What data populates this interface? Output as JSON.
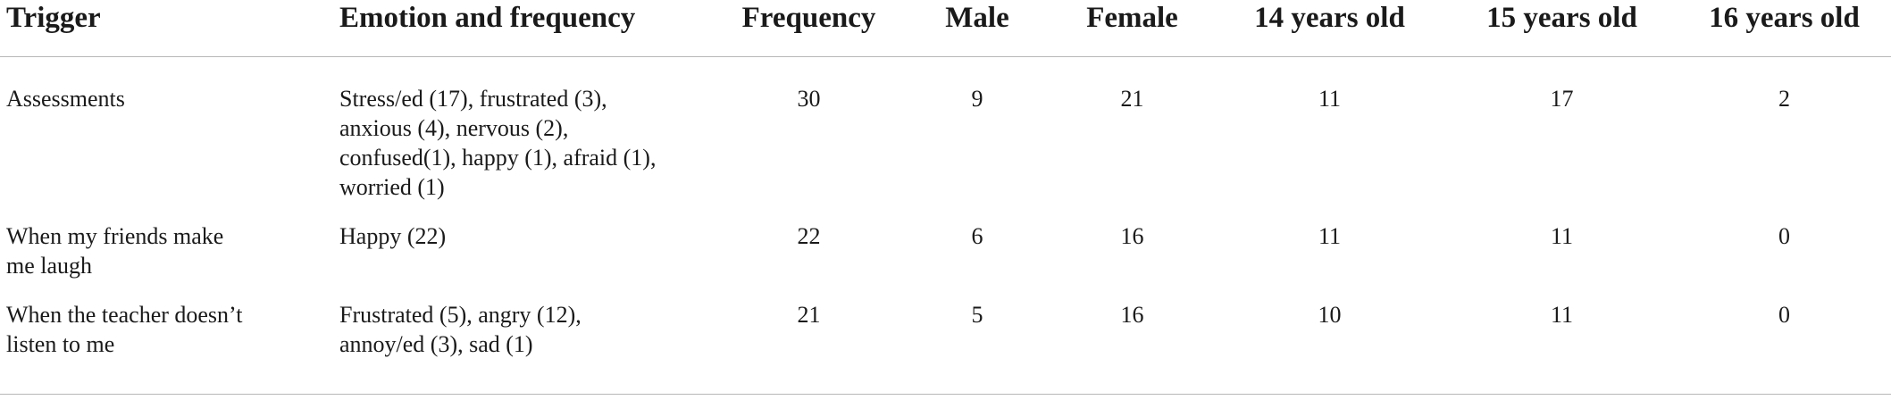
{
  "table": {
    "headers": [
      "Trigger",
      "Emotion and frequency",
      "Frequency",
      "Male",
      "Female",
      "14 years old",
      "15 years old",
      "16 years old"
    ],
    "rows": [
      {
        "trigger": [
          "Assessments"
        ],
        "emotion": [
          "Stress/ed (17), frustrated (3),",
          "anxious (4), nervous (2),",
          "confused(1), happy (1), afraid (1),",
          "worried (1)"
        ],
        "frequency": "30",
        "male": "9",
        "female": "21",
        "age14": "11",
        "age15": "17",
        "age16": "2"
      },
      {
        "trigger": [
          "When my friends make",
          "me laugh"
        ],
        "emotion": [
          "Happy (22)"
        ],
        "frequency": "22",
        "male": "6",
        "female": "16",
        "age14": "11",
        "age15": "11",
        "age16": "0"
      },
      {
        "trigger": [
          "When the teacher doesn’t",
          "listen to me"
        ],
        "emotion": [
          "Frustrated (5), angry (12),",
          "annoy/ed (3), sad (1)"
        ],
        "frequency": "21",
        "male": "5",
        "female": "16",
        "age14": "10",
        "age15": "11",
        "age16": "0"
      }
    ]
  }
}
